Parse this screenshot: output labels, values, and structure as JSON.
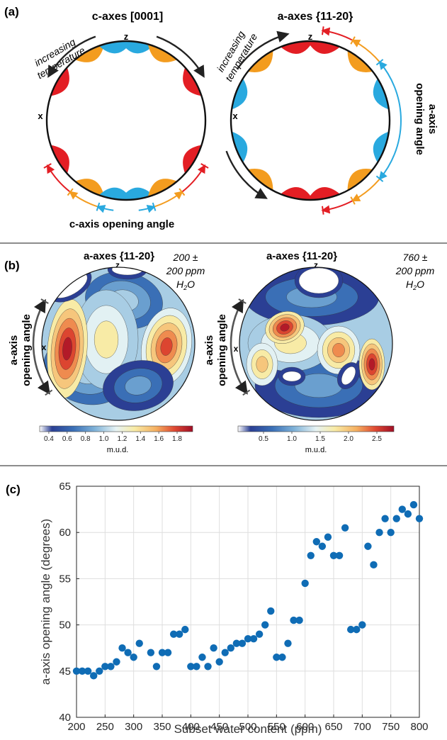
{
  "panel_a": {
    "label": "(a)",
    "left": {
      "title": "c-axes [0001]",
      "z_label": "z",
      "x_label": "x",
      "temp_line1": "increasing",
      "temp_line2": "temperature",
      "angle_label": "c-axis opening angle"
    },
    "right": {
      "title": "a-axes {11-20}",
      "z_label": "z",
      "x_label": "x",
      "temp_line1": "increasing",
      "temp_line2": "temperature",
      "angle_line1": "a-axis",
      "angle_line2": "opening angle"
    },
    "colors": {
      "red": "#e31e24",
      "orange": "#f39c1f",
      "blue": "#29a9df",
      "arrow": "#222222"
    }
  },
  "panel_b": {
    "label": "(b)",
    "left": {
      "title": "a-axes {11-20}",
      "z_label": "z",
      "x_label": "x",
      "water_line1": "200 ±",
      "water_line2": "200 ppm",
      "water_line3": "H",
      "water_sub": "2",
      "water_end": "O",
      "side_line1": "a-axis",
      "side_line2": "opening angle",
      "colorbar_ticks": [
        "0.4",
        "0.6",
        "0.8",
        "1.0",
        "1.2",
        "1.4",
        "1.6",
        "1.8"
      ],
      "colorbar_label": "m.u.d."
    },
    "right": {
      "title": "a-axes {11-20}",
      "z_label": "z",
      "x_label": "x",
      "water_line1": "760 ±",
      "water_line2": "200 ppm",
      "water_line3": "H",
      "water_sub": "2",
      "water_end": "O",
      "side_line1": "a-axis",
      "side_line2": "opening angle",
      "colorbar_ticks": [
        "0.5",
        "1.0",
        "1.5",
        "2.0",
        "2.5"
      ],
      "colorbar_label": "m.u.d."
    }
  },
  "panel_c": {
    "label": "(c)",
    "chart_data": {
      "type": "scatter",
      "xlabel": "Subset water content (ppm)",
      "ylabel": "a-axis opening angle (degrees)",
      "xlim": [
        200,
        800
      ],
      "ylim": [
        40,
        65
      ],
      "xticks": [
        200,
        250,
        300,
        350,
        400,
        450,
        500,
        550,
        600,
        650,
        700,
        750,
        800
      ],
      "yticks": [
        40,
        45,
        50,
        55,
        60,
        65
      ],
      "grid": true,
      "color": "#0f6cb5",
      "points": [
        [
          200,
          45
        ],
        [
          210,
          45
        ],
        [
          220,
          45
        ],
        [
          230,
          44.5
        ],
        [
          240,
          45
        ],
        [
          250,
          45.5
        ],
        [
          260,
          45.5
        ],
        [
          270,
          46
        ],
        [
          280,
          47.5
        ],
        [
          290,
          47
        ],
        [
          300,
          46.5
        ],
        [
          310,
          48
        ],
        [
          330,
          47
        ],
        [
          340,
          45.5
        ],
        [
          350,
          47
        ],
        [
          360,
          47
        ],
        [
          370,
          49
        ],
        [
          380,
          49
        ],
        [
          390,
          49.5
        ],
        [
          400,
          45.5
        ],
        [
          410,
          45.5
        ],
        [
          420,
          46.5
        ],
        [
          430,
          45.5
        ],
        [
          440,
          47.5
        ],
        [
          450,
          46
        ],
        [
          460,
          47
        ],
        [
          470,
          47.5
        ],
        [
          480,
          48
        ],
        [
          490,
          48
        ],
        [
          500,
          48.5
        ],
        [
          510,
          48.5
        ],
        [
          520,
          49
        ],
        [
          530,
          50
        ],
        [
          540,
          51.5
        ],
        [
          550,
          46.5
        ],
        [
          560,
          46.5
        ],
        [
          570,
          48
        ],
        [
          580,
          50.5
        ],
        [
          590,
          50.5
        ],
        [
          600,
          54.5
        ],
        [
          610,
          57.5
        ],
        [
          620,
          59
        ],
        [
          630,
          58.5
        ],
        [
          640,
          59.5
        ],
        [
          650,
          57.5
        ],
        [
          660,
          57.5
        ],
        [
          670,
          60.5
        ],
        [
          680,
          49.5
        ],
        [
          690,
          49.5
        ],
        [
          700,
          50
        ],
        [
          710,
          58.5
        ],
        [
          720,
          56.5
        ],
        [
          730,
          60
        ],
        [
          740,
          61.5
        ],
        [
          750,
          60
        ],
        [
          760,
          61.5
        ],
        [
          770,
          62.5
        ],
        [
          780,
          62
        ],
        [
          790,
          63
        ],
        [
          800,
          61.5
        ]
      ]
    }
  }
}
